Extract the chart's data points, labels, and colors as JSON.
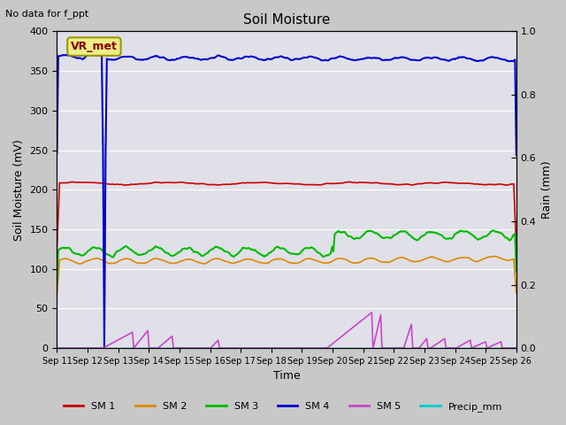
{
  "title": "Soil Moisture",
  "subtitle": "No data for f_ppt",
  "xlabel": "Time",
  "ylabel_left": "Soil Moisture (mV)",
  "ylabel_right": "Rain (mm)",
  "annotation": "VR_met",
  "ylim_left": [
    0,
    400
  ],
  "ylim_right": [
    0,
    1.0
  ],
  "fig_bg_color": "#c8c8c8",
  "plot_bg_color": "#e0e0e8",
  "grid_color": "#ffffff",
  "x_ticks": [
    "Sep 11",
    "Sep 12",
    "Sep 13",
    "Sep 14",
    "Sep 15",
    "Sep 16",
    "Sep 17",
    "Sep 18",
    "Sep 19",
    "Sep 20",
    "Sep 21",
    "Sep 22",
    "Sep 23",
    "Sep 24",
    "Sep 25",
    "Sep 26"
  ],
  "series": {
    "SM1": {
      "color": "#cc0000",
      "label": "SM 1"
    },
    "SM2": {
      "color": "#dd8800",
      "label": "SM 2"
    },
    "SM3": {
      "color": "#00bb00",
      "label": "SM 3"
    },
    "SM4": {
      "color": "#0000cc",
      "label": "SM 4"
    },
    "SM5": {
      "color": "#cc44cc",
      "label": "SM 5"
    },
    "Precip": {
      "color": "#00cccc",
      "label": "Precip_mm"
    }
  }
}
